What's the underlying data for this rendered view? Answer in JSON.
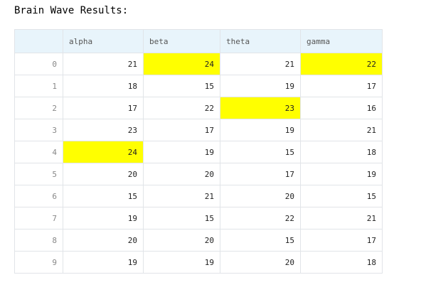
{
  "title": "Brain Wave Results:",
  "columns": [
    "alpha",
    "beta",
    "theta",
    "gamma"
  ],
  "highlight_color": "#ffff00",
  "header_bg": "#e8f4fb",
  "rows": [
    {
      "index": "0",
      "values": [
        "21",
        "24",
        "21",
        "22"
      ],
      "highlighted": [
        false,
        true,
        false,
        true
      ]
    },
    {
      "index": "1",
      "values": [
        "18",
        "15",
        "19",
        "17"
      ],
      "highlighted": [
        false,
        false,
        false,
        false
      ]
    },
    {
      "index": "2",
      "values": [
        "17",
        "22",
        "23",
        "16"
      ],
      "highlighted": [
        false,
        false,
        true,
        false
      ]
    },
    {
      "index": "3",
      "values": [
        "23",
        "17",
        "19",
        "21"
      ],
      "highlighted": [
        false,
        false,
        false,
        false
      ]
    },
    {
      "index": "4",
      "values": [
        "24",
        "19",
        "15",
        "18"
      ],
      "highlighted": [
        true,
        false,
        false,
        false
      ]
    },
    {
      "index": "5",
      "values": [
        "20",
        "20",
        "17",
        "19"
      ],
      "highlighted": [
        false,
        false,
        false,
        false
      ]
    },
    {
      "index": "6",
      "values": [
        "15",
        "21",
        "20",
        "15"
      ],
      "highlighted": [
        false,
        false,
        false,
        false
      ]
    },
    {
      "index": "7",
      "values": [
        "19",
        "15",
        "22",
        "21"
      ],
      "highlighted": [
        false,
        false,
        false,
        false
      ]
    },
    {
      "index": "8",
      "values": [
        "20",
        "20",
        "15",
        "17"
      ],
      "highlighted": [
        false,
        false,
        false,
        false
      ]
    },
    {
      "index": "9",
      "values": [
        "19",
        "19",
        "20",
        "18"
      ],
      "highlighted": [
        false,
        false,
        false,
        false
      ]
    }
  ]
}
